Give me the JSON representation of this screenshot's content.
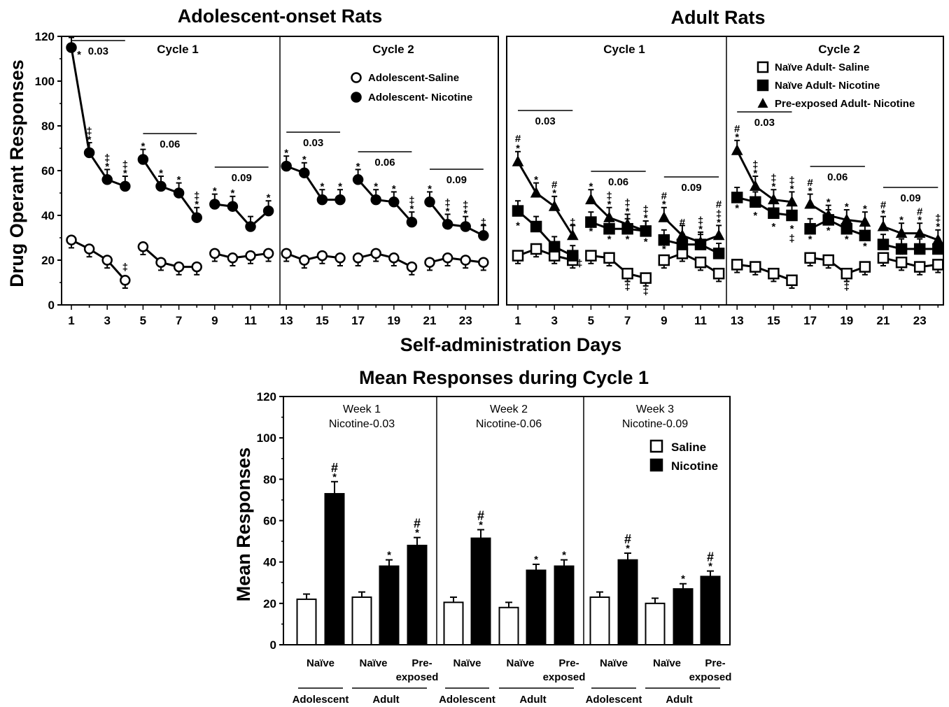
{
  "figure": {
    "xlabel": "Self-administration Days"
  },
  "chart_data": [
    {
      "type": "line",
      "title": "Adolescent-onset Rats",
      "ylabel": "Drug Operant Responses",
      "ylim": [
        0,
        120
      ],
      "yticks": [
        "0",
        "20",
        "40",
        "60",
        "80",
        "100",
        "120"
      ],
      "xticks": [
        "1",
        "3",
        "5",
        "7",
        "9",
        "11",
        "13",
        "15",
        "17",
        "19",
        "21",
        "23"
      ],
      "cycles": [
        "Cycle 1",
        "Cycle 2"
      ],
      "dose_labels": [
        "0.03",
        "0.06",
        "0.09",
        "0.03",
        "0.06",
        "0.09"
      ],
      "series": [
        {
          "name": "Adolescent-Saline",
          "marker": "circle-open",
          "x": [
            1,
            2,
            3,
            4,
            5,
            6,
            7,
            8,
            9,
            10,
            11,
            12,
            13,
            14,
            15,
            16,
            17,
            18,
            19,
            20,
            21,
            22,
            23,
            24
          ],
          "y": [
            29,
            25,
            20,
            11,
            26,
            19,
            17,
            17,
            23,
            21,
            22,
            23,
            23,
            20,
            22,
            21,
            21,
            23,
            21,
            17,
            19,
            21,
            20,
            19
          ]
        },
        {
          "name": "Adolescent- Nicotine",
          "marker": "circle-filled",
          "x": [
            1,
            2,
            3,
            4,
            5,
            6,
            7,
            8,
            9,
            10,
            11,
            12,
            13,
            14,
            15,
            16,
            17,
            18,
            19,
            20,
            21,
            22,
            23,
            24
          ],
          "y": [
            115,
            68,
            56,
            53,
            65,
            53,
            50,
            39,
            45,
            44,
            35,
            42,
            62,
            59,
            47,
            47,
            56,
            47,
            46,
            37,
            46,
            36,
            35,
            31
          ]
        }
      ]
    },
    {
      "type": "line",
      "title": "Adult Rats",
      "ylim": [
        0,
        120
      ],
      "xticks": [
        "1",
        "3",
        "5",
        "7",
        "9",
        "11",
        "13",
        "15",
        "17",
        "19",
        "21",
        "23"
      ],
      "cycles": [
        "Cycle 1",
        "Cycle 2"
      ],
      "dose_labels": [
        "0.03",
        "0.06",
        "0.09",
        "0.03",
        "0.06",
        "0.09"
      ],
      "series": [
        {
          "name": "Naïve Adult- Saline",
          "marker": "square-open",
          "x": [
            1,
            2,
            3,
            4,
            5,
            6,
            7,
            8,
            9,
            10,
            11,
            12,
            13,
            14,
            15,
            16,
            17,
            18,
            19,
            20,
            21,
            22,
            23,
            24
          ],
          "y": [
            22,
            25,
            22,
            20,
            22,
            21,
            14,
            12,
            20,
            23,
            19,
            14,
            18,
            17,
            14,
            11,
            21,
            20,
            14,
            17,
            21,
            19,
            17,
            18
          ]
        },
        {
          "name": "Naïve Adult- Nicotine",
          "marker": "square-filled",
          "x": [
            1,
            2,
            3,
            4,
            5,
            6,
            7,
            8,
            9,
            10,
            11,
            12,
            13,
            14,
            15,
            16,
            17,
            18,
            19,
            20,
            21,
            22,
            23,
            24
          ],
          "y": [
            42,
            35,
            26,
            22,
            37,
            34,
            34,
            33,
            29,
            27,
            27,
            23,
            48,
            46,
            41,
            40,
            34,
            38,
            34,
            31,
            27,
            25,
            25,
            25
          ]
        },
        {
          "name": "Pre-exposed Adult- Nicotine",
          "marker": "triangle-filled",
          "x": [
            1,
            2,
            3,
            4,
            5,
            6,
            7,
            8,
            9,
            10,
            11,
            12,
            13,
            14,
            15,
            16,
            17,
            18,
            19,
            20,
            21,
            22,
            23,
            24
          ],
          "y": [
            64,
            50,
            44,
            31,
            47,
            39,
            36,
            33,
            39,
            31,
            28,
            31,
            69,
            53,
            47,
            46,
            45,
            40,
            38,
            37,
            35,
            32,
            32,
            29
          ]
        }
      ]
    },
    {
      "type": "bar",
      "title": "Mean Responses during Cycle 1",
      "ylabel": "Mean Responses",
      "ylim": [
        0,
        120
      ],
      "yticks": [
        "0",
        "20",
        "40",
        "60",
        "80",
        "100",
        "120"
      ],
      "legend": [
        "Saline",
        "Nicotine"
      ],
      "weeks": [
        {
          "label": "Week 1",
          "dose": "Nicotine-0.03",
          "saline": [
            22,
            23
          ],
          "nicotine": [
            73,
            38,
            48
          ],
          "nicotine_sig": [
            "#*",
            "*",
            "#*"
          ]
        },
        {
          "label": "Week 2",
          "dose": "Nicotine-0.06",
          "saline": [
            20.5,
            18
          ],
          "nicotine": [
            51.5,
            36,
            38
          ],
          "nicotine_sig": [
            "#*",
            "*",
            "*"
          ]
        },
        {
          "label": "Week 3",
          "dose": "Nicotine-0.09",
          "saline": [
            23,
            20
          ],
          "nicotine": [
            41,
            27,
            33
          ],
          "nicotine_sig": [
            "#*",
            "*",
            "#*"
          ]
        }
      ],
      "group_labels": {
        "naive": "Naïve",
        "preexposed_line1": "Pre-",
        "preexposed_line2": "exposed",
        "adolescent": "Adolescent",
        "adult": "Adult"
      }
    }
  ]
}
